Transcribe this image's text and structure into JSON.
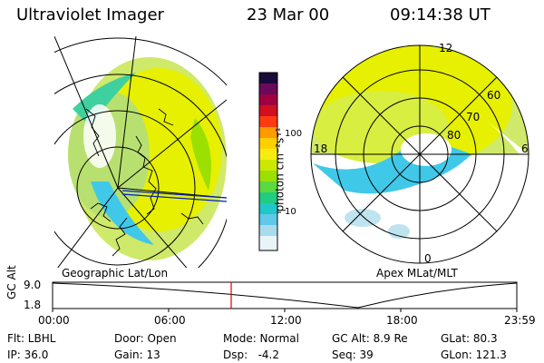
{
  "header": {
    "instrument": "Ultraviolet Imager",
    "date": "23 Mar 00",
    "time": "09:14:38 UT"
  },
  "panels": {
    "left_label": "Geographic Lat/Lon",
    "right_label": "Apex MLat/MLT"
  },
  "colorbar": {
    "unit_label": "photon cm⁻²s⁻¹",
    "ticks": [
      "100",
      "10"
    ],
    "scale": "log",
    "colors": [
      "#1a0a3a",
      "#6a0a5a",
      "#c00030",
      "#ff3a10",
      "#ff9a00",
      "#ffe000",
      "#e6f000",
      "#9be000",
      "#3cd040",
      "#00c8a0",
      "#40c8e8",
      "#bfe4ef",
      "#ffffff"
    ]
  },
  "polar_labels": {
    "mlt_top": "12",
    "mlt_left": "18",
    "mlt_right": "6",
    "mlt_bottom": "0",
    "lat_60": "60",
    "lat_70": "70",
    "lat_80": "80"
  },
  "altitude_plot": {
    "ylabel": "GC Alt",
    "y_top": "9.0",
    "y_bottom": "1.8",
    "xticks": [
      "00:00",
      "06:00",
      "12:00",
      "18:00",
      "23:59"
    ],
    "marker_hour": 9.244,
    "marker_color": "#e00000"
  },
  "status": {
    "row1": {
      "flt": "Flt: LBHL",
      "door": "Door: Open",
      "mode": "Mode: Normal",
      "gcalt": "GC Alt: 8.9 Re",
      "glat": "GLat: 80.3"
    },
    "row2": {
      "ip": "IP: 36.0",
      "gain": "Gain: 13",
      "dsp": "Dsp:   -4.2",
      "seq": "Seq: 39",
      "glon": "GLon: 121.3"
    }
  }
}
